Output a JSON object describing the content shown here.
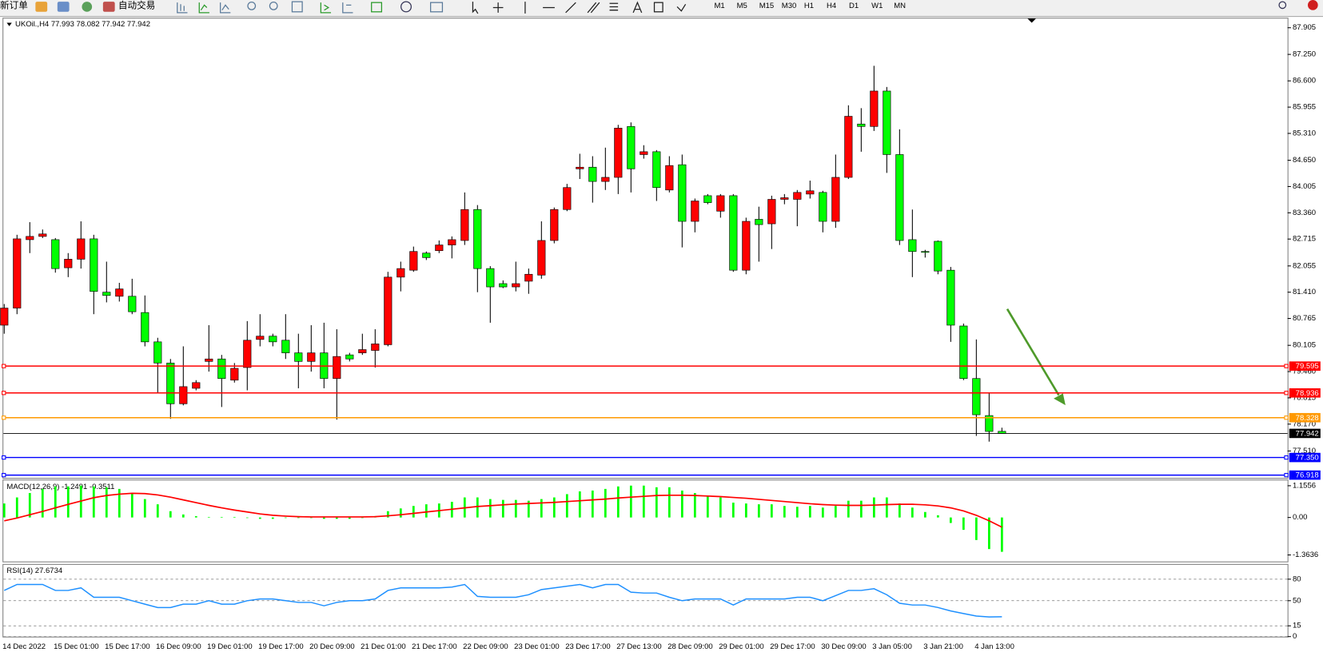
{
  "toolbar": {
    "new_order": "新订单",
    "auto_trading": "自动交易",
    "timeframes": [
      "M1",
      "M5",
      "M15",
      "M30",
      "H1",
      "H4",
      "D1",
      "W1",
      "MN"
    ]
  },
  "chart_data": [
    {
      "type": "candlestick",
      "title": "UKOil.,H4  77.993 78.082 77.942 77.942",
      "up_color": "#ff0000",
      "down_color": "#00ff00",
      "categories": [
        "14 Dec 2022",
        null,
        null,
        null,
        "15 Dec 01:00",
        null,
        null,
        null,
        "15 Dec 17:00",
        null,
        null,
        null,
        "16 Dec 09:00",
        null,
        null,
        null,
        "19 Dec 01:00",
        null,
        null,
        null,
        "19 Dec 17:00",
        null,
        null,
        null,
        "20 Dec 09:00",
        null,
        null,
        null,
        "21 Dec 01:00",
        null,
        null,
        null,
        "21 Dec 17:00",
        null,
        null,
        null,
        "22 Dec 09:00",
        null,
        null,
        null,
        "23 Dec 01:00",
        null,
        null,
        null,
        "23 Dec 17:00",
        null,
        null,
        null,
        "27 Dec 13:00",
        null,
        null,
        null,
        "28 Dec 09:00",
        null,
        null,
        null,
        "29 Dec 01:00",
        null,
        null,
        null,
        "29 Dec 17:00",
        null,
        null,
        null,
        "30 Dec 09:00",
        null,
        null,
        null,
        "3 Jan 05:00",
        null,
        null,
        null,
        "3 Jan 21:00",
        null,
        null,
        null,
        "4 Jan 13:00",
        null,
        null
      ],
      "open": [
        80.6,
        81.02,
        82.7,
        82.78,
        82.7,
        82.01,
        82.22,
        82.72,
        81.41,
        81.31,
        81.31,
        80.91,
        80.19,
        79.67,
        78.67,
        79.05,
        79.71,
        79.77,
        79.25,
        79.56,
        80.25,
        80.33,
        80.23,
        79.92,
        79.71,
        79.92,
        79.29,
        79.87,
        79.92,
        79.98,
        80.12,
        81.78,
        81.95,
        82.37,
        82.43,
        82.57,
        82.68,
        83.44,
        81.99,
        81.62,
        81.54,
        81.68,
        81.83,
        82.68,
        83.44,
        84.44,
        84.48,
        84.13,
        84.23,
        85.48,
        84.79,
        84.86,
        83.92,
        84.54,
        83.15,
        83.78,
        83.4,
        83.78,
        81.95,
        83.2,
        83.09,
        83.69,
        83.69,
        83.82,
        83.86,
        83.15,
        84.23,
        85.54,
        85.48,
        86.35,
        84.79,
        82.7,
        82.41,
        82.66,
        81.95,
        80.58,
        79.29,
        78.38,
        77.993
      ],
      "high": [
        81.12,
        82.82,
        83.13,
        82.95,
        82.74,
        82.37,
        83.15,
        82.82,
        82.16,
        81.64,
        81.74,
        81.33,
        80.29,
        79.77,
        80.08,
        79.25,
        80.6,
        79.87,
        79.67,
        80.7,
        80.87,
        80.39,
        80.87,
        80.39,
        80.6,
        80.66,
        80.5,
        79.92,
        80.39,
        80.5,
        81.91,
        82.16,
        82.53,
        82.41,
        82.68,
        82.78,
        83.86,
        83.55,
        82.05,
        81.7,
        82.16,
        81.99,
        83.15,
        83.49,
        84.07,
        84.81,
        84.75,
        84.96,
        85.52,
        85.58,
        85.02,
        84.9,
        84.75,
        84.79,
        83.71,
        83.82,
        83.82,
        83.82,
        83.24,
        83.51,
        83.78,
        83.82,
        83.92,
        84.15,
        83.9,
        84.79,
        86.0,
        85.93,
        86.97,
        86.45,
        85.41,
        83.44,
        82.45,
        82.68,
        82.03,
        80.64,
        80.25,
        78.94,
        78.082
      ],
      "low": [
        80.39,
        80.87,
        82.37,
        82.74,
        81.89,
        81.78,
        81.99,
        80.87,
        81.16,
        81.18,
        80.87,
        80.08,
        78.94,
        78.3,
        78.63,
        79.0,
        79.46,
        78.59,
        79.19,
        79.0,
        80.08,
        80.08,
        79.77,
        79.05,
        79.46,
        79.05,
        78.28,
        79.71,
        79.87,
        79.56,
        80.08,
        81.43,
        81.91,
        82.2,
        82.37,
        82.24,
        82.57,
        81.41,
        80.66,
        81.51,
        81.43,
        81.37,
        81.74,
        82.61,
        83.4,
        84.19,
        83.61,
        83.92,
        83.82,
        83.86,
        84.69,
        83.65,
        83.86,
        82.51,
        82.88,
        83.57,
        83.24,
        81.91,
        81.85,
        82.16,
        82.47,
        83.57,
        83.03,
        83.71,
        82.88,
        82.99,
        84.19,
        84.86,
        85.37,
        84.34,
        82.57,
        81.78,
        82.26,
        81.85,
        80.19,
        79.25,
        77.88,
        77.74,
        77.942
      ],
      "close": [
        81.02,
        82.72,
        82.78,
        82.84,
        81.99,
        82.22,
        82.72,
        81.43,
        81.33,
        81.49,
        80.93,
        80.19,
        79.67,
        78.67,
        79.09,
        79.19,
        79.77,
        79.29,
        79.54,
        80.23,
        80.33,
        80.19,
        79.92,
        79.71,
        79.92,
        79.29,
        79.83,
        79.77,
        80.0,
        80.14,
        81.78,
        81.99,
        82.41,
        82.26,
        82.57,
        82.7,
        83.44,
        81.99,
        81.54,
        81.54,
        81.62,
        81.85,
        82.68,
        83.44,
        83.98,
        84.48,
        84.13,
        84.23,
        85.44,
        84.44,
        84.86,
        83.98,
        84.52,
        83.15,
        83.65,
        83.61,
        83.78,
        81.95,
        83.15,
        83.07,
        83.69,
        83.73,
        83.86,
        83.9,
        83.15,
        84.23,
        85.73,
        85.48,
        86.35,
        84.79,
        82.68,
        82.41,
        82.39,
        81.93,
        80.6,
        79.29,
        78.4,
        77.99,
        77.942
      ],
      "ylim": [
        76.85,
        88.13
      ],
      "yticks": [
        87.905,
        {
          "value": 87.25,
          "label": "87.250"
        },
        {
          "value": 86.6,
          "label": "86.600"
        },
        85.955,
        {
          "value": 85.31,
          "label": "85.310"
        },
        {
          "value": 84.65,
          "label": "84.650"
        },
        84.005,
        {
          "value": 83.36,
          "label": "83.360"
        },
        82.715,
        82.055,
        {
          "value": 81.41,
          "label": "81.410"
        },
        80.765,
        80.105,
        {
          "value": 79.46,
          "label": "79.460"
        },
        78.815,
        {
          "value": 78.17,
          "label": "78.170"
        },
        {
          "value": 77.51,
          "label": "77.510"
        }
      ],
      "levels": [
        {
          "value": 79.595,
          "color": "#ff0000"
        },
        {
          "value": 78.936,
          "color": "#ff0000"
        },
        {
          "value": 78.328,
          "color": "#ff9900"
        },
        {
          "value": 77.942,
          "color": "#000000"
        },
        {
          "value": 77.35,
          "label": "77.350",
          "color": "#0000ff"
        },
        {
          "value": 76.918,
          "color": "#0000ff"
        }
      ]
    },
    {
      "type": "macd",
      "title": "MACD(12,26,9) -1.2491 -0.3511",
      "histogram": {
        "color": "#00ff00",
        "values": [
          0.51,
          0.73,
          0.89,
          1.04,
          1.13,
          1.13,
          1.16,
          1.13,
          1.1,
          1.04,
          0.89,
          0.67,
          0.48,
          0.23,
          0.11,
          0.05,
          0.02,
          0.02,
          0.02,
          -0.02,
          -0.05,
          -0.05,
          -0.02,
          -0.02,
          -0.02,
          -0.05,
          -0.05,
          -0.05,
          -0.02,
          0.05,
          0.23,
          0.33,
          0.42,
          0.48,
          0.51,
          0.57,
          0.73,
          0.73,
          0.67,
          0.64,
          0.64,
          0.61,
          0.67,
          0.73,
          0.85,
          0.95,
          0.98,
          1.04,
          1.13,
          1.16,
          1.16,
          1.1,
          1.1,
          0.98,
          0.89,
          0.79,
          0.73,
          0.54,
          0.51,
          0.48,
          0.48,
          0.42,
          0.39,
          0.42,
          0.36,
          0.42,
          0.61,
          0.61,
          0.73,
          0.73,
          0.51,
          0.36,
          0.2,
          0.08,
          -0.2,
          -0.45,
          -0.82,
          -1.15,
          -1.2491
        ]
      },
      "signal": {
        "color": "#ff0000",
        "values": [
          -0.12,
          -0.02,
          0.1,
          0.22,
          0.35,
          0.48,
          0.6,
          0.72,
          0.8,
          0.85,
          0.88,
          0.87,
          0.82,
          0.74,
          0.64,
          0.54,
          0.44,
          0.35,
          0.27,
          0.2,
          0.13,
          0.08,
          0.05,
          0.03,
          0.02,
          0.02,
          0.02,
          0.02,
          0.02,
          0.03,
          0.06,
          0.1,
          0.15,
          0.2,
          0.25,
          0.3,
          0.35,
          0.4,
          0.43,
          0.46,
          0.49,
          0.51,
          0.53,
          0.55,
          0.58,
          0.61,
          0.64,
          0.67,
          0.71,
          0.74,
          0.77,
          0.8,
          0.81,
          0.81,
          0.8,
          0.78,
          0.76,
          0.73,
          0.7,
          0.66,
          0.62,
          0.58,
          0.54,
          0.5,
          0.47,
          0.45,
          0.44,
          0.44,
          0.45,
          0.47,
          0.48,
          0.48,
          0.46,
          0.42,
          0.35,
          0.24,
          0.08,
          -0.12,
          -0.3511
        ]
      },
      "ylim": [
        -1.6,
        1.35
      ],
      "yticks": [
        1.1556,
        {
          "value": 0,
          "label": "0.00"
        },
        -1.3636
      ]
    },
    {
      "type": "line",
      "title": "RSI(14) 27.6734",
      "color": "#1e90ff",
      "values": [
        64.3,
        72.6,
        72.6,
        72.6,
        64.3,
        64.3,
        67.9,
        54.8,
        54.8,
        54.8,
        50.0,
        45.2,
        40.5,
        40.5,
        45.2,
        45.2,
        50.0,
        45.2,
        45.2,
        50.0,
        52.4,
        52.4,
        50.0,
        47.6,
        47.6,
        42.9,
        47.6,
        50.0,
        50.0,
        52.4,
        64.3,
        67.9,
        67.9,
        67.9,
        67.9,
        69.0,
        72.6,
        56.0,
        54.8,
        54.8,
        54.8,
        58.3,
        65.5,
        67.9,
        70.2,
        72.6,
        67.9,
        72.6,
        72.6,
        61.9,
        60.7,
        60.7,
        54.8,
        50.0,
        52.4,
        52.4,
        52.4,
        44.0,
        52.4,
        52.4,
        52.4,
        52.4,
        54.8,
        54.8,
        50.0,
        57.1,
        64.3,
        64.3,
        66.7,
        58.3,
        46.4,
        44.0,
        44.0,
        40.5,
        35.7,
        32.1,
        28.6,
        27.4,
        27.6734
      ],
      "ylim": [
        0,
        100
      ],
      "yticks": [
        80,
        50,
        15,
        0
      ],
      "grid": "dashed"
    }
  ]
}
